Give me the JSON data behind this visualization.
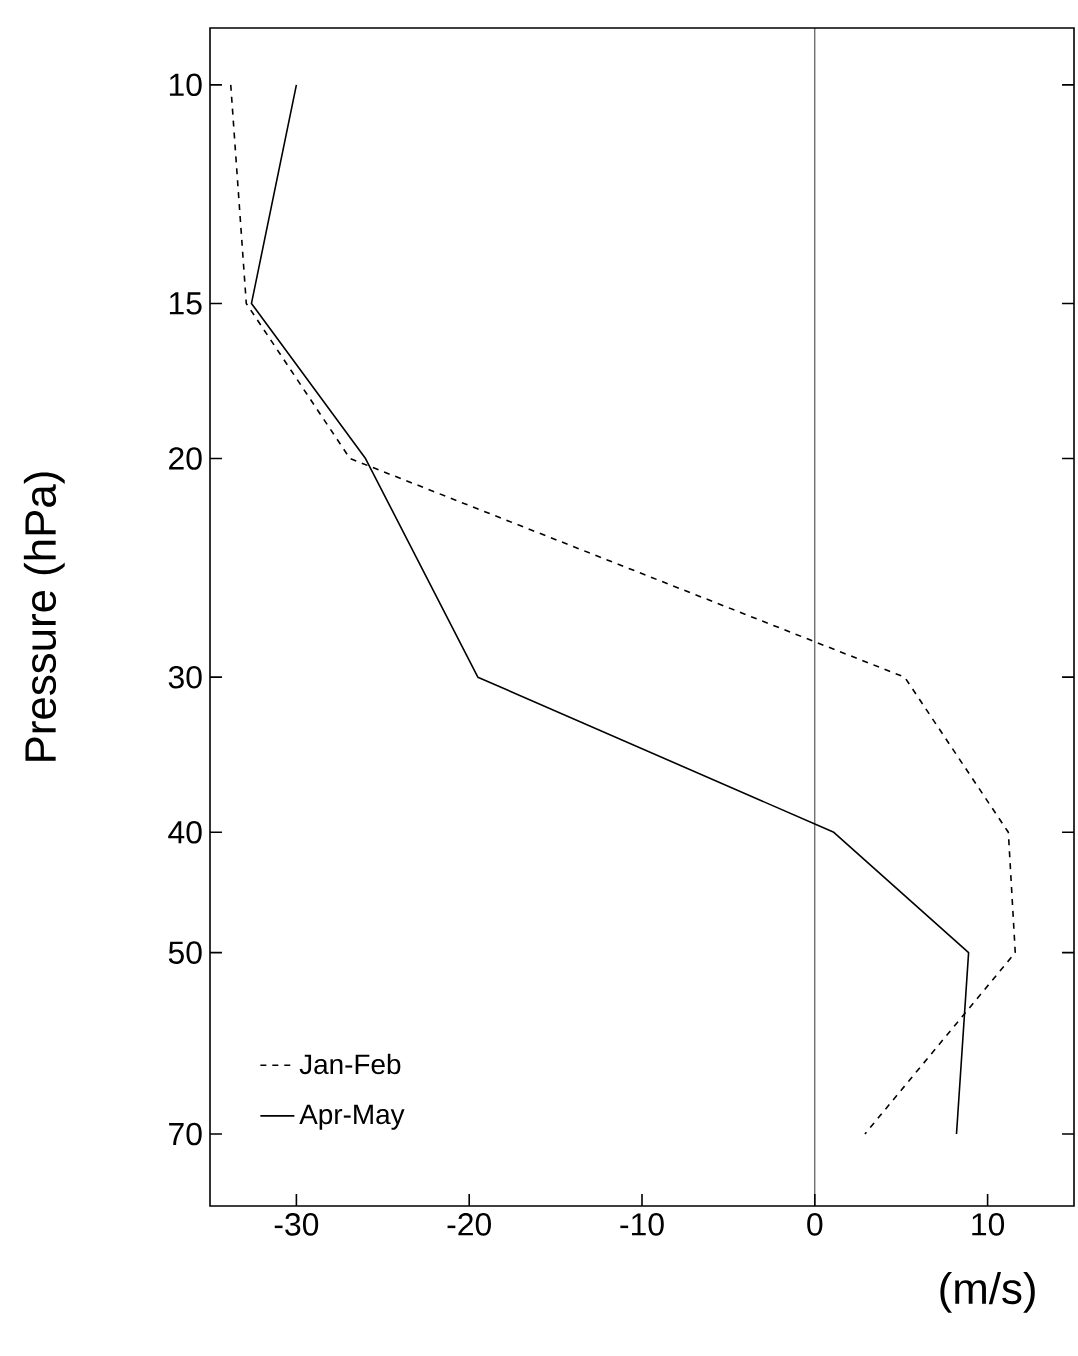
{
  "chart_data": {
    "type": "line",
    "xlabel": "(m/s)",
    "ylabel": "Pressure (hPa)",
    "log": "y",
    "xlim": [
      -35,
      15
    ],
    "ylim": [
      80,
      9
    ],
    "xticks": [
      -30,
      -20,
      -10,
      0,
      10
    ],
    "yticks": [
      10,
      15,
      20,
      30,
      40,
      50,
      70
    ],
    "grid": false,
    "legend": "bottom left",
    "marker": "none",
    "ref_lines": [
      {
        "axis": "x",
        "value": 0,
        "color": "#000000"
      }
    ],
    "series": [
      {
        "name": "Jan-Feb",
        "color": "#000000",
        "line_style": "dashed",
        "x": [
          -33.8,
          -32.9,
          -26.9,
          5.2,
          11.2,
          11.6,
          2.9
        ],
        "values": [
          10,
          15,
          20,
          30,
          40,
          50,
          70
        ]
      },
      {
        "name": "Apr-May",
        "color": "#000000",
        "line_style": "solid",
        "x": [
          -30,
          -32.6,
          -26,
          -19.5,
          1.1,
          8.9,
          8.2
        ],
        "values": [
          10,
          15,
          20,
          30,
          40,
          50,
          70
        ]
      }
    ]
  }
}
